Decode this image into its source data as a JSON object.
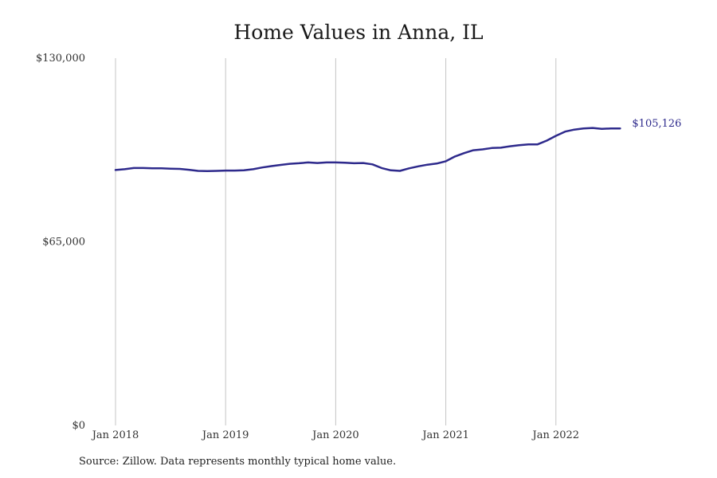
{
  "chart_data": {
    "type": "line",
    "title": "Home Values in Anna, IL",
    "xlabel": "",
    "ylabel": "",
    "ylim": [
      0,
      130000
    ],
    "y_ticks": [
      "$0",
      "$65,000",
      "$130,000"
    ],
    "y_tick_values": [
      0,
      65000,
      130000
    ],
    "x_ticks": [
      "Jan 2018",
      "Jan 2019",
      "Jan 2020",
      "Jan 2021",
      "Jan 2022"
    ],
    "x_tick_values": [
      "2018-01",
      "2019-01",
      "2020-01",
      "2021-01",
      "2022-01"
    ],
    "grid": "vertical",
    "series": [
      {
        "color": "#2e2a8c",
        "x": [
          "2018-01",
          "2018-02",
          "2018-03",
          "2018-04",
          "2018-05",
          "2018-06",
          "2018-07",
          "2018-08",
          "2018-09",
          "2018-10",
          "2018-11",
          "2018-12",
          "2019-01",
          "2019-02",
          "2019-03",
          "2019-04",
          "2019-05",
          "2019-06",
          "2019-07",
          "2019-08",
          "2019-09",
          "2019-10",
          "2019-11",
          "2019-12",
          "2020-01",
          "2020-02",
          "2020-03",
          "2020-04",
          "2020-05",
          "2020-06",
          "2020-07",
          "2020-08",
          "2020-09",
          "2020-10",
          "2020-11",
          "2020-12",
          "2021-01",
          "2021-02",
          "2021-03",
          "2021-04",
          "2021-05",
          "2021-06",
          "2021-07",
          "2021-08",
          "2021-09",
          "2021-10",
          "2021-11",
          "2021-12",
          "2022-01",
          "2022-02",
          "2022-03",
          "2022-04",
          "2022-05",
          "2022-06",
          "2022-07",
          "2022-08"
        ],
        "values": [
          90400,
          90700,
          91100,
          91100,
          91000,
          91000,
          90900,
          90800,
          90500,
          90100,
          90000,
          90100,
          90200,
          90200,
          90300,
          90700,
          91300,
          91800,
          92200,
          92600,
          92800,
          93100,
          92900,
          93100,
          93100,
          93000,
          92800,
          92900,
          92400,
          91100,
          90300,
          90100,
          91000,
          91700,
          92300,
          92700,
          93500,
          95200,
          96400,
          97400,
          97700,
          98200,
          98300,
          98800,
          99200,
          99500,
          99500,
          100800,
          102500,
          104000,
          104700,
          105100,
          105300,
          105000,
          105100,
          105126
        ],
        "end_label": "$105,126"
      }
    ]
  },
  "source_note": "Source: Zillow. Data represents monthly typical home value."
}
